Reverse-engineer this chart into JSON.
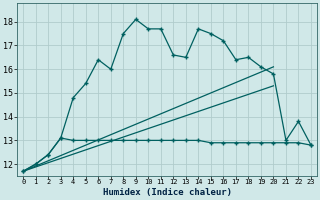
{
  "title": "",
  "xlabel": "Humidex (Indice chaleur)",
  "ylabel": "",
  "background_color": "#d0e8e8",
  "grid_color": "#b0cccc",
  "line_color": "#006060",
  "xlim": [
    -0.5,
    23.5
  ],
  "ylim": [
    11.5,
    18.8
  ],
  "xticks": [
    0,
    1,
    2,
    3,
    4,
    5,
    6,
    7,
    8,
    9,
    10,
    11,
    12,
    13,
    14,
    15,
    16,
    17,
    18,
    19,
    20,
    21,
    22,
    23
  ],
  "yticks": [
    12,
    13,
    14,
    15,
    16,
    17,
    18
  ],
  "series1_x": [
    0,
    1,
    2,
    3,
    4,
    5,
    6,
    7,
    8,
    9,
    10,
    11,
    12,
    13,
    14,
    15,
    16,
    17,
    18,
    19,
    20,
    21,
    22,
    23
  ],
  "series1_y": [
    11.7,
    12.0,
    12.4,
    13.1,
    14.8,
    15.4,
    16.4,
    16.0,
    17.5,
    18.1,
    17.7,
    17.7,
    16.6,
    16.5,
    17.7,
    17.5,
    17.2,
    16.4,
    16.5,
    16.1,
    15.8,
    13.0,
    13.8,
    12.8
  ],
  "series2_x": [
    0,
    1,
    2,
    3,
    4,
    5,
    6,
    7,
    8,
    9,
    10,
    11,
    12,
    13,
    14,
    15,
    16,
    17,
    18,
    19,
    20,
    21,
    22,
    23
  ],
  "series2_y": [
    11.7,
    12.0,
    12.4,
    13.1,
    13.0,
    13.0,
    13.0,
    13.0,
    13.0,
    13.0,
    13.0,
    13.0,
    13.0,
    13.0,
    13.0,
    12.9,
    12.9,
    12.9,
    12.9,
    12.9,
    12.9,
    12.9,
    12.9,
    12.8
  ],
  "series3_x": [
    0,
    20
  ],
  "series3_y": [
    11.7,
    16.1
  ],
  "series4_x": [
    0,
    20
  ],
  "series4_y": [
    11.7,
    15.3
  ]
}
